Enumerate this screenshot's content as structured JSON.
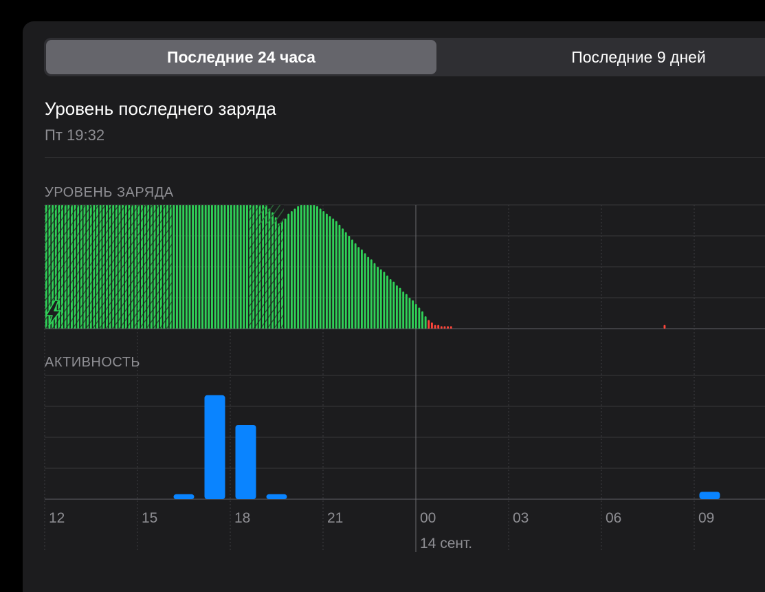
{
  "tabs": [
    {
      "label": "Последние 24 часа",
      "selected": true
    },
    {
      "label": "Последние 9 дней",
      "selected": false
    }
  ],
  "last_charge": {
    "title": "Уровень последнего заряда",
    "time": "Пт 19:32"
  },
  "battery_section": {
    "label": "УРОВЕНЬ ЗАРЯДА"
  },
  "activity_section": {
    "label": "АКТИВНОСТЬ"
  },
  "icons": {
    "charging": "lightning-bolt-icon"
  },
  "colors": {
    "battery_ok": "#30d158",
    "battery_low": "#ff453a",
    "activity": "#0a84ff",
    "charging_hatch": "#1e5a2c"
  },
  "chart_data": [
    {
      "type": "bar",
      "title": "УРОВЕНЬ ЗАРЯДА",
      "x_ticks": [
        "12",
        "15",
        "18",
        "21",
        "00",
        "03",
        "06",
        "09"
      ],
      "x_sublabel": "14 сент.",
      "ylim": [
        0,
        100
      ],
      "grid": true,
      "values": [
        100,
        100,
        100,
        100,
        100,
        100,
        100,
        100,
        100,
        100,
        100,
        100,
        100,
        100,
        100,
        100,
        100,
        100,
        100,
        100,
        100,
        100,
        100,
        100,
        100,
        100,
        100,
        100,
        100,
        100,
        100,
        100,
        100,
        100,
        100,
        100,
        100,
        100,
        100,
        100,
        100,
        100,
        100,
        100,
        100,
        100,
        100,
        100,
        100,
        100,
        100,
        100,
        100,
        100,
        100,
        100,
        100,
        100,
        100,
        100,
        100,
        100,
        100,
        100,
        100,
        100,
        100,
        100,
        100,
        100,
        97,
        94,
        90,
        85,
        87,
        89,
        93,
        95,
        97,
        99,
        100,
        100,
        100,
        100,
        100,
        99,
        97,
        95,
        93,
        91,
        89,
        87,
        84,
        81,
        78,
        75,
        72,
        69,
        66,
        64,
        61,
        58,
        56,
        53,
        50,
        48,
        46,
        43,
        40,
        38,
        35,
        33,
        30,
        28,
        25,
        23,
        20,
        17,
        14,
        10,
        7,
        5,
        3,
        3,
        2,
        2,
        2,
        2,
        1,
        1,
        1,
        1,
        1,
        1,
        1,
        1,
        1,
        1,
        1,
        1,
        1,
        1,
        1,
        1,
        1,
        1,
        1,
        1,
        1,
        1,
        1,
        1,
        1,
        1,
        1,
        1,
        1,
        1,
        1,
        1,
        1,
        1,
        1,
        1,
        1,
        1,
        1,
        1,
        1,
        1,
        1,
        1,
        1,
        1,
        1,
        1,
        1,
        1,
        1,
        1,
        1,
        1,
        1,
        1,
        1,
        1,
        1,
        1,
        1,
        1,
        1,
        1,
        1,
        1,
        3,
        1,
        1,
        1,
        1,
        1,
        1,
        1,
        1,
        1,
        1,
        1,
        1,
        1,
        1,
        1,
        1,
        1,
        1,
        1,
        1,
        1,
        1,
        1,
        1,
        1,
        1,
        1,
        1,
        1,
        1,
        1
      ],
      "low_threshold": 9,
      "charging_ranges": [
        [
          0,
          40
        ],
        [
          64,
          75
        ]
      ]
    },
    {
      "type": "bar",
      "title": "АКТИВНОСТЬ",
      "x_ticks": [
        "12",
        "15",
        "18",
        "21",
        "00",
        "03",
        "06",
        "09"
      ],
      "x_sublabel": "14 сент.",
      "grid": true,
      "values": [
        0,
        0,
        0,
        0,
        2,
        42,
        30,
        2,
        0,
        0,
        0,
        0,
        0,
        0,
        0,
        0,
        0,
        0,
        0,
        0,
        0,
        3,
        0
      ],
      "ylim": [
        0,
        50
      ]
    }
  ]
}
